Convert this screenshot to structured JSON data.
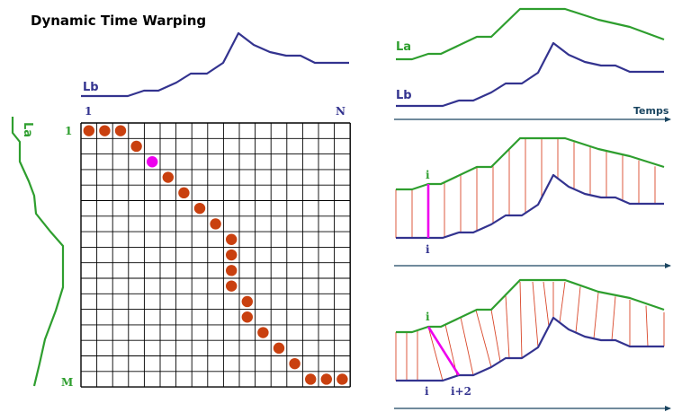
{
  "title": "Dynamic Time Warping",
  "colors": {
    "la": "#2e9e2e",
    "lb": "#33338f",
    "warp_line": "#d9472a",
    "dot": "#c9400f",
    "highlight": "#ee00ee",
    "axis": "#1a4560",
    "grid": "#000000"
  },
  "left_panel": {
    "lb_label": "Lb",
    "la_label": "La",
    "col_first_label": "1",
    "col_last_label": "N",
    "row_first_label": "1",
    "row_last_label": "M",
    "grid_cols": 17,
    "grid_rows": 17,
    "path": [
      [
        0,
        0
      ],
      [
        1,
        0
      ],
      [
        2,
        0
      ],
      [
        3,
        1
      ],
      [
        4,
        2
      ],
      [
        5,
        3
      ],
      [
        6,
        4
      ],
      [
        7,
        5
      ],
      [
        8,
        6
      ],
      [
        9,
        7
      ],
      [
        9,
        8
      ],
      [
        9,
        9
      ],
      [
        9,
        10
      ],
      [
        10,
        11
      ],
      [
        10,
        12
      ],
      [
        11,
        13
      ],
      [
        12,
        14
      ],
      [
        13,
        15
      ],
      [
        14,
        16
      ],
      [
        15,
        16
      ],
      [
        16,
        16
      ]
    ],
    "highlight_index": 4
  },
  "right_top": {
    "la_label": "La",
    "lb_label": "Lb",
    "axis_label": "Temps"
  },
  "right_mid": {
    "top_index_label": "i",
    "bottom_index_label": "i"
  },
  "right_bottom": {
    "top_index_label": "i",
    "bottom_index_label_1": "i",
    "bottom_index_label_2": "i+2"
  }
}
